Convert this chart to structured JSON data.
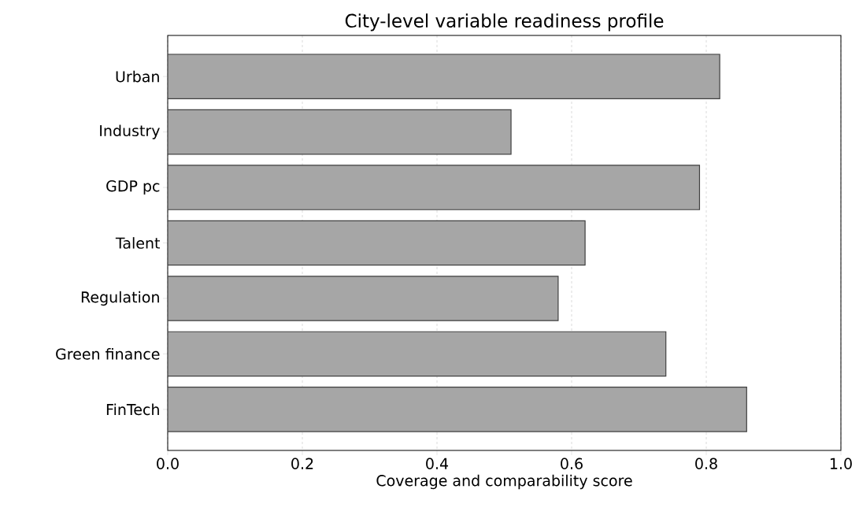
{
  "chart_data": {
    "type": "bar",
    "orientation": "horizontal",
    "title": "City-level variable readiness profile",
    "xlabel": "Coverage and comparability score",
    "categories": [
      "Urban",
      "Industry",
      "GDP pc",
      "Talent",
      "Regulation",
      "Green finance",
      "FinTech"
    ],
    "values": [
      0.82,
      0.51,
      0.79,
      0.62,
      0.58,
      0.74,
      0.86
    ],
    "color": "#a6a6a6",
    "xlim": [
      0,
      1
    ],
    "xticks": [
      {
        "value": 0,
        "label": "0.0"
      },
      {
        "value": 0.2,
        "label": "0.2"
      },
      {
        "value": 0.4,
        "label": "0.4"
      },
      {
        "value": 0.6,
        "label": "0.6"
      },
      {
        "value": 0.8,
        "label": "0.8"
      },
      {
        "value": 1,
        "label": "1.0"
      }
    ],
    "grid": "x"
  }
}
